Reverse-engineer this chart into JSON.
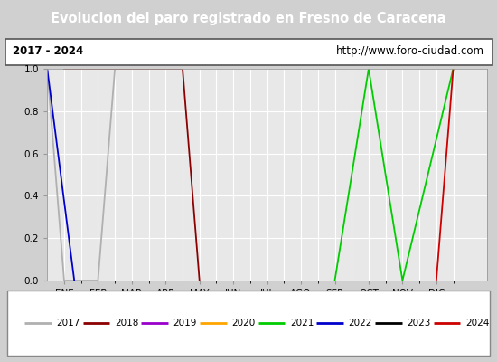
{
  "title": "Evolucion del paro registrado en Fresno de Caracena",
  "subtitle_left": "2017 - 2024",
  "subtitle_right": "http://www.foro-ciudad.com",
  "xlabel_months": [
    "ENE",
    "FEB",
    "MAR",
    "ABR",
    "MAY",
    "JUN",
    "JUL",
    "AGO",
    "SEP",
    "OCT",
    "NOV",
    "DIC"
  ],
  "ylim": [
    0.0,
    1.0
  ],
  "yticks": [
    0.0,
    0.2,
    0.4,
    0.6,
    0.8,
    1.0
  ],
  "background_color": "#d0d0d0",
  "plot_bg_color": "#e8e8e8",
  "title_bg_color": "#5b8ed6",
  "title_text_color": "#ffffff",
  "series": [
    {
      "label": "2017",
      "color": "#b0b0b0",
      "x": [
        0.0,
        0.5,
        1.5,
        2.0
      ],
      "y": [
        1.0,
        0.0,
        0.0,
        1.0
      ]
    },
    {
      "label": "2018",
      "color": "#8b0000",
      "x": [
        0.5,
        1.0,
        2.0,
        3.0,
        4.0,
        4.5
      ],
      "y": [
        1.0,
        1.0,
        1.0,
        1.0,
        1.0,
        0.0
      ]
    },
    {
      "label": "2019",
      "color": "#9900cc",
      "x": [],
      "y": []
    },
    {
      "label": "2020",
      "color": "#ffa500",
      "x": [],
      "y": []
    },
    {
      "label": "2021",
      "color": "#00cc00",
      "x": [
        8.5,
        9.5,
        10.5,
        12.0
      ],
      "y": [
        0.0,
        1.0,
        0.0,
        1.0
      ]
    },
    {
      "label": "2022",
      "color": "#0000cc",
      "x": [
        0.0,
        0.8
      ],
      "y": [
        1.0,
        0.0
      ]
    },
    {
      "label": "2023",
      "color": "#000000",
      "x": [],
      "y": []
    },
    {
      "label": "2024",
      "color": "#cc0000",
      "x": [
        11.5,
        12.0
      ],
      "y": [
        0.0,
        1.0
      ]
    }
  ]
}
